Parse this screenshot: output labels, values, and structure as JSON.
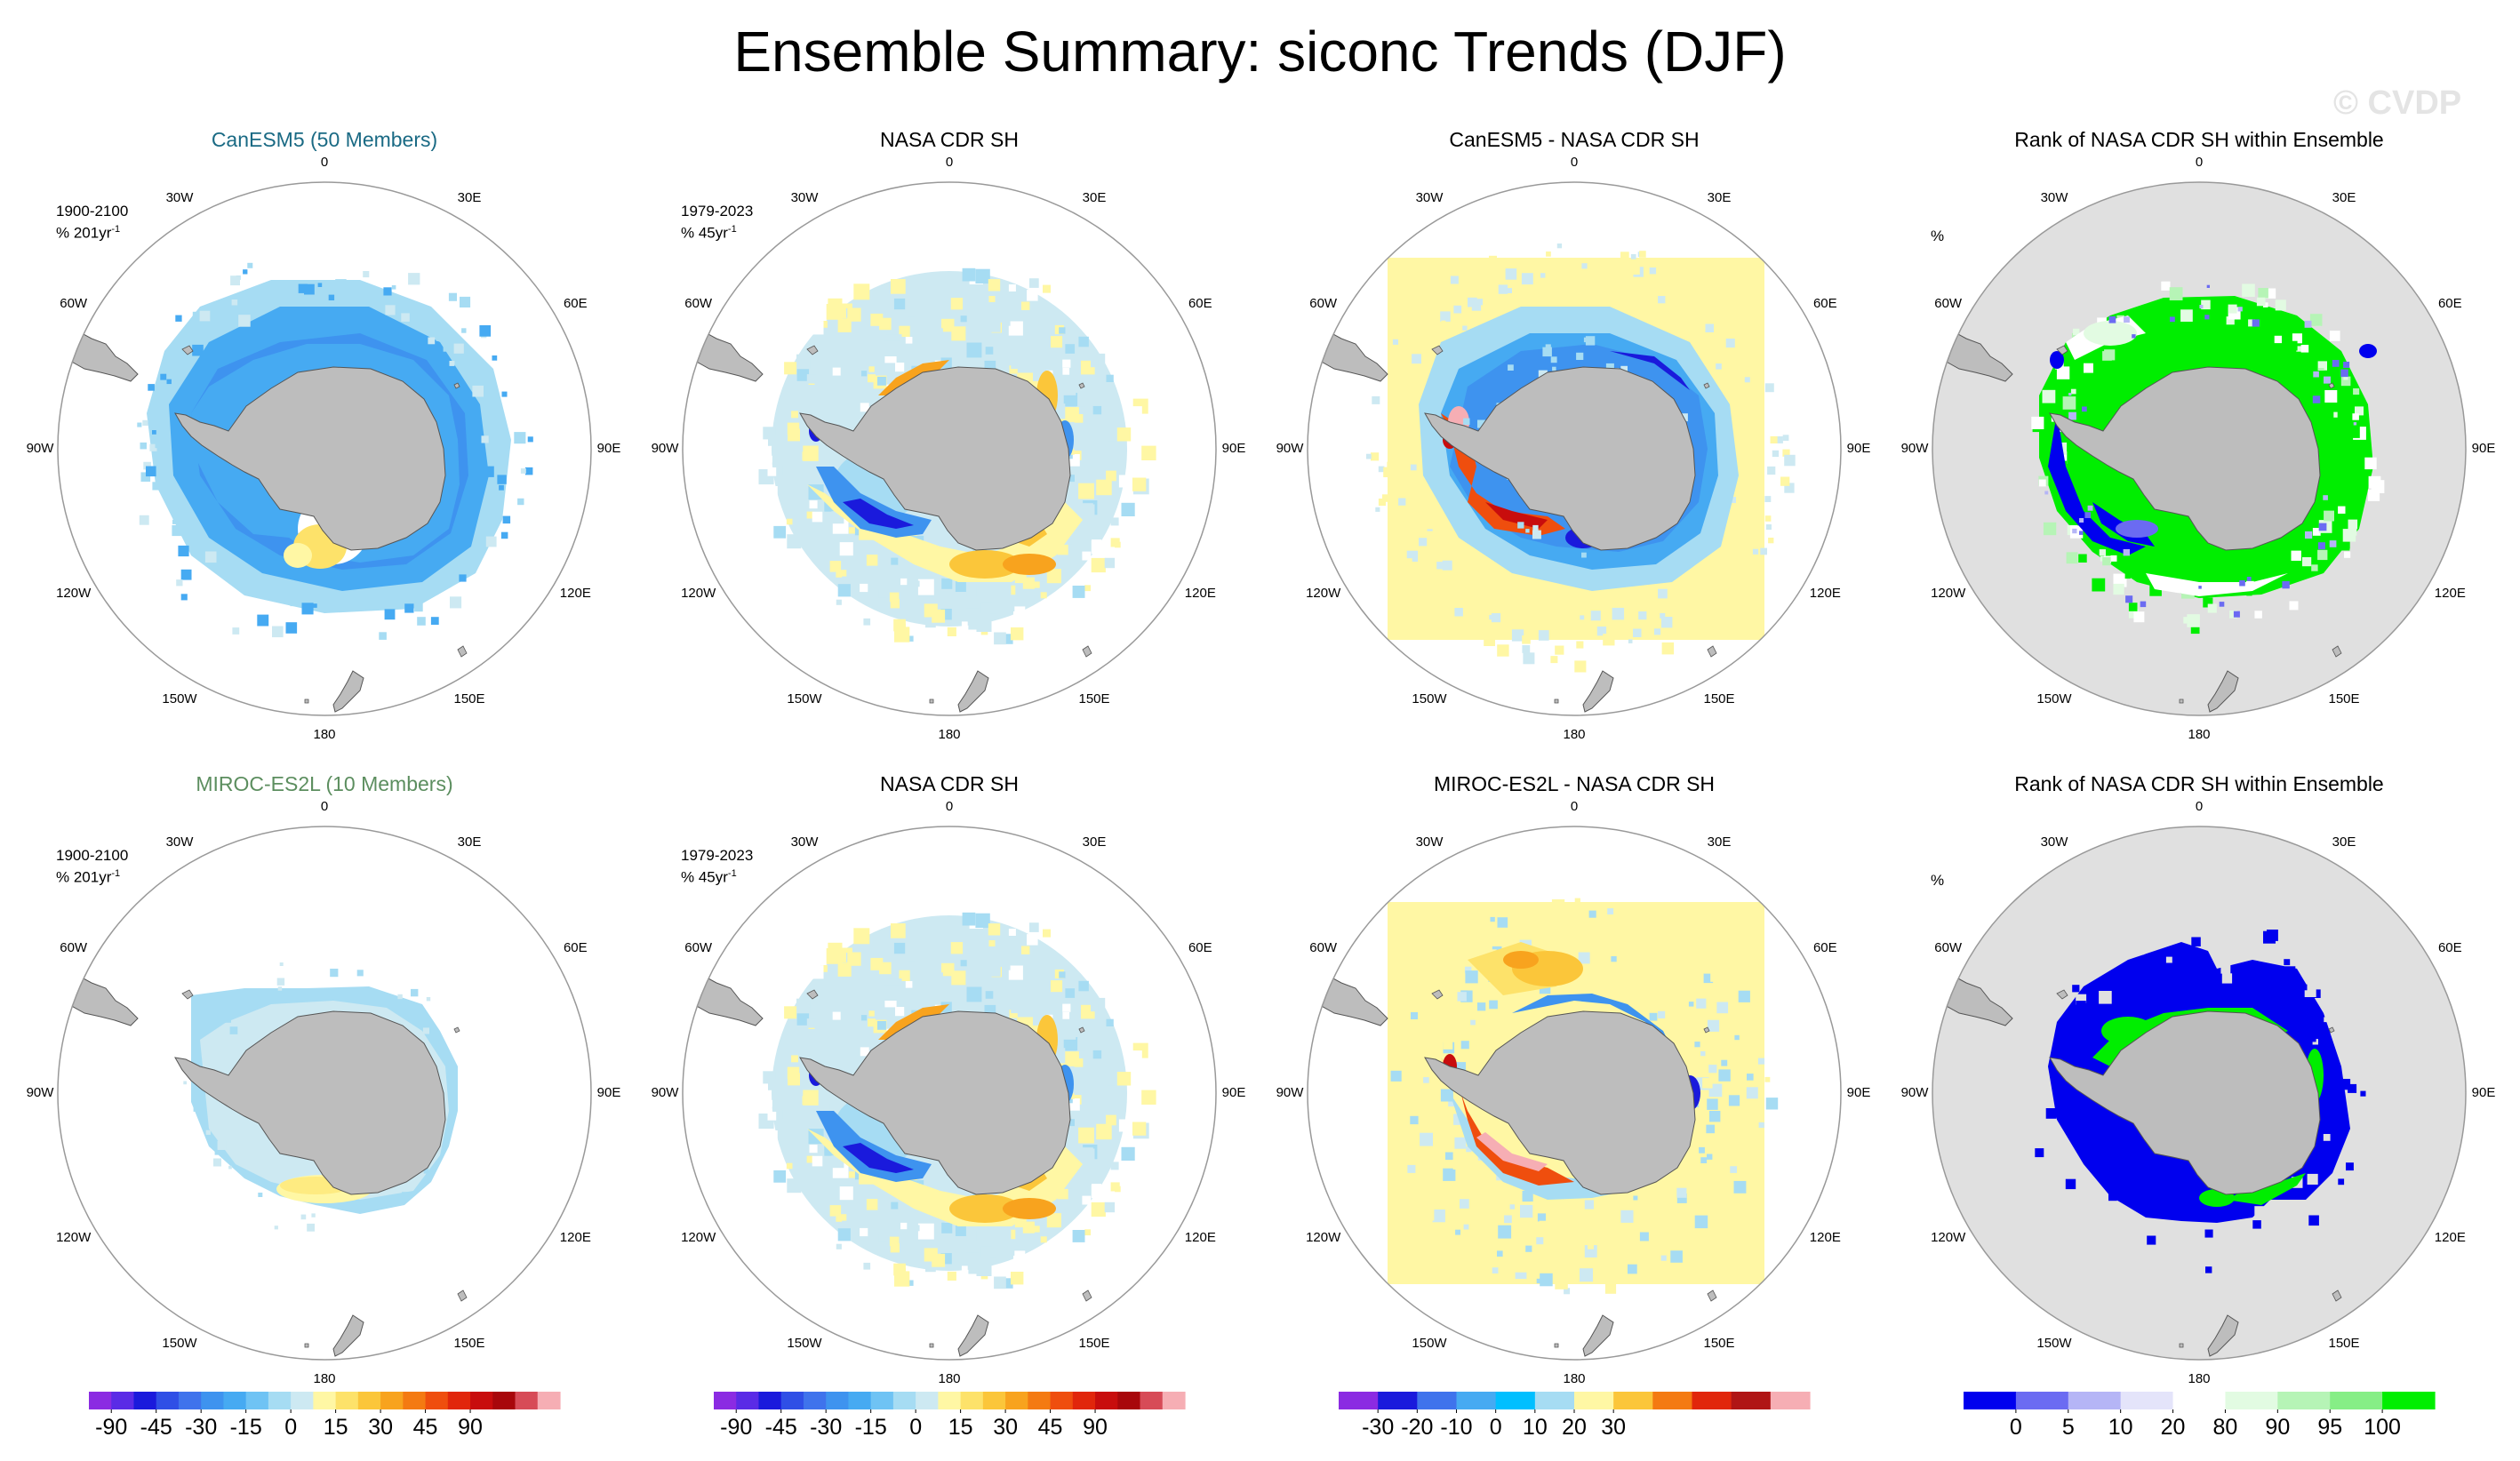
{
  "title": "Ensemble Summary: siconc Trends (DJF)",
  "watermark": "© CVDP",
  "colors": {
    "ocean_rank": "#e0e0e0",
    "land": "#bdbdbd",
    "circle": "#999999",
    "model1_title": "#1a6a84",
    "model2_title": "#5c8e5f"
  },
  "lon_labels": [
    "0",
    "30E",
    "60E",
    "90E",
    "120E",
    "150E",
    "180",
    "150W",
    "120W",
    "90W",
    "60W",
    "30W"
  ],
  "chart_data": [
    {
      "type": "heatmap",
      "name": "CanESM5 ensemble mean trend",
      "title": "CanESM5 (50 Members)",
      "period": "1900-2100",
      "units": "% 201yr",
      "units_sup": "-1",
      "pattern": "model1_trend"
    },
    {
      "type": "heatmap",
      "name": "Observed trend",
      "title": "NASA CDR SH",
      "period": "1979-2023",
      "units": "% 45yr",
      "units_sup": "-1",
      "pattern": "obs_trend"
    },
    {
      "type": "heatmap",
      "name": "Difference",
      "title": "CanESM5 - NASA CDR SH",
      "pattern": "diff1"
    },
    {
      "type": "heatmap",
      "name": "Rank",
      "title": "Rank of NASA CDR SH within Ensemble",
      "units": "%",
      "pattern": "rank1"
    },
    {
      "type": "heatmap",
      "name": "MIROC-ES2L ensemble mean trend",
      "title": "MIROC-ES2L (10 Members)",
      "period": "1900-2100",
      "units": "% 201yr",
      "units_sup": "-1",
      "pattern": "model2_trend"
    },
    {
      "type": "heatmap",
      "name": "Observed trend",
      "title": "NASA CDR SH",
      "period": "1979-2023",
      "units": "% 45yr",
      "units_sup": "-1",
      "pattern": "obs_trend"
    },
    {
      "type": "heatmap",
      "name": "Difference",
      "title": "MIROC-ES2L - NASA CDR SH",
      "pattern": "diff2"
    },
    {
      "type": "heatmap",
      "name": "Rank",
      "title": "Rank of NASA CDR SH within Ensemble",
      "units": "%",
      "pattern": "rank2"
    }
  ],
  "colorbars": [
    {
      "name": "trend",
      "colors": [
        "#8b2be2",
        "#5a2be6",
        "#1a1adc",
        "#2f4fe6",
        "#3f73ec",
        "#3e93ef",
        "#46aaf2",
        "#6fc3f4",
        "#a6dcf3",
        "#cde9f2",
        "#fff7a4",
        "#fde26a",
        "#fbc63a",
        "#f8a31e",
        "#f47a12",
        "#ef4e0e",
        "#e1260b",
        "#c80d0d",
        "#a8070b",
        "#d74b57",
        "#f6aeb4"
      ],
      "labels": [
        "-90",
        "-45",
        "-30",
        "-15",
        "0",
        "15",
        "30",
        "45",
        "90"
      ],
      "label_positions": [
        1,
        3,
        5,
        7,
        9,
        11,
        13,
        15,
        17
      ]
    },
    {
      "name": "trend",
      "colors": [
        "#8b2be2",
        "#5a2be6",
        "#1a1adc",
        "#2f4fe6",
        "#3f73ec",
        "#3e93ef",
        "#46aaf2",
        "#6fc3f4",
        "#a6dcf3",
        "#cde9f2",
        "#fff7a4",
        "#fde26a",
        "#fbc63a",
        "#f8a31e",
        "#f47a12",
        "#ef4e0e",
        "#e1260b",
        "#c80d0d",
        "#a8070b",
        "#d74b57",
        "#f6aeb4"
      ],
      "labels": [
        "-90",
        "-45",
        "-30",
        "-15",
        "0",
        "15",
        "30",
        "45",
        "90"
      ],
      "label_positions": [
        1,
        3,
        5,
        7,
        9,
        11,
        13,
        15,
        17
      ]
    },
    {
      "name": "difference",
      "colors": [
        "#8b2be2",
        "#1a1adc",
        "#3f73ec",
        "#46aaf2",
        "#00bfff",
        "#a6dcf3",
        "#fff7a4",
        "#fbc63a",
        "#f47a12",
        "#e1260b",
        "#b01515",
        "#f6aeb4"
      ],
      "labels": [
        "-30",
        "-20",
        "-10",
        "0",
        "10",
        "20",
        "30"
      ],
      "label_positions": [
        1,
        2,
        3,
        4,
        5,
        6,
        7
      ]
    },
    {
      "name": "rank",
      "colors": [
        "#0000ee",
        "#6b6bf2",
        "#b5b5f6",
        "#e4e4fa",
        "#ffffff",
        "#e2fbe2",
        "#b6f4b6",
        "#86ee86",
        "#00ee00"
      ],
      "labels": [
        "0",
        "5",
        "10",
        "20",
        "80",
        "90",
        "95",
        "100"
      ],
      "label_positions": [
        1,
        2,
        3,
        4,
        5,
        6,
        7,
        8
      ]
    }
  ]
}
